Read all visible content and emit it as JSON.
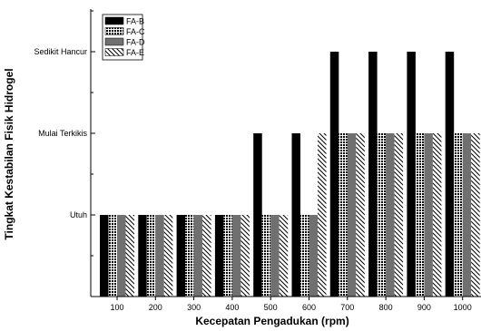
{
  "chart_data": {
    "type": "bar",
    "title": "",
    "xlabel": "Kecepatan Pengadukan (rpm)",
    "ylabel": "Tingkat Kestabilan Fisik Hidrogel",
    "categories": [
      "100",
      "200",
      "300",
      "400",
      "500",
      "600",
      "700",
      "800",
      "900",
      "1000"
    ],
    "y_levels": [
      "Utuh",
      "Mulai Terkikis",
      "Sedikit Hancur"
    ],
    "ylim": [
      0,
      3.55
    ],
    "series": [
      {
        "name": "FA-B",
        "fill": "solid-black",
        "values": [
          1,
          1,
          1,
          1,
          2,
          2,
          3,
          3,
          3,
          3
        ]
      },
      {
        "name": "FA-C",
        "fill": "crosshatch-grid",
        "values": [
          1,
          1,
          1,
          1,
          1,
          1,
          2,
          2,
          2,
          2
        ]
      },
      {
        "name": "FA-D",
        "fill": "dark-gray",
        "values": [
          1,
          1,
          1,
          1,
          1,
          1,
          2,
          2,
          2,
          2
        ]
      },
      {
        "name": "FA-E",
        "fill": "diagonal-hatch",
        "values": [
          1,
          1,
          1,
          1,
          1,
          2,
          2,
          2,
          2,
          2
        ]
      }
    ],
    "legend": "top-left",
    "grid": false
  }
}
